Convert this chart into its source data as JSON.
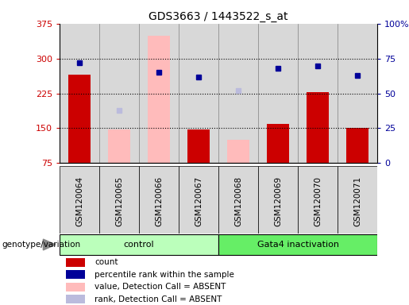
{
  "title": "GDS3663 / 1443522_s_at",
  "samples": [
    "GSM120064",
    "GSM120065",
    "GSM120066",
    "GSM120067",
    "GSM120068",
    "GSM120069",
    "GSM120070",
    "GSM120071"
  ],
  "count_values": [
    265,
    null,
    null,
    148,
    null,
    160,
    228,
    150
  ],
  "count_absent_values": [
    null,
    148,
    350,
    null,
    125,
    null,
    null,
    null
  ],
  "rank_values": [
    72,
    null,
    65,
    62,
    null,
    68,
    70,
    63
  ],
  "rank_absent_values": [
    null,
    38,
    null,
    null,
    52,
    null,
    null,
    null
  ],
  "ylim_left": [
    75,
    375
  ],
  "ylim_right": [
    0,
    100
  ],
  "yticks_left": [
    75,
    150,
    225,
    300,
    375
  ],
  "yticks_right": [
    0,
    25,
    50,
    75,
    100
  ],
  "ytick_labels_right": [
    "0",
    "25",
    "50",
    "75",
    "100%"
  ],
  "hgrid_values": [
    150,
    225,
    300
  ],
  "color_count": "#cc0000",
  "color_rank": "#000099",
  "color_count_absent": "#ffbbbb",
  "color_rank_absent": "#bbbbdd",
  "color_col_bg": "#d8d8d8",
  "color_group_control": "#bbffbb",
  "color_group_gata": "#66ee66",
  "legend_items": [
    {
      "label": "count",
      "color": "#cc0000"
    },
    {
      "label": "percentile rank within the sample",
      "color": "#000099"
    },
    {
      "label": "value, Detection Call = ABSENT",
      "color": "#ffbbbb"
    },
    {
      "label": "rank, Detection Call = ABSENT",
      "color": "#bbbbdd"
    }
  ],
  "bar_width": 0.55,
  "figsize": [
    5.15,
    3.84
  ],
  "dpi": 100
}
